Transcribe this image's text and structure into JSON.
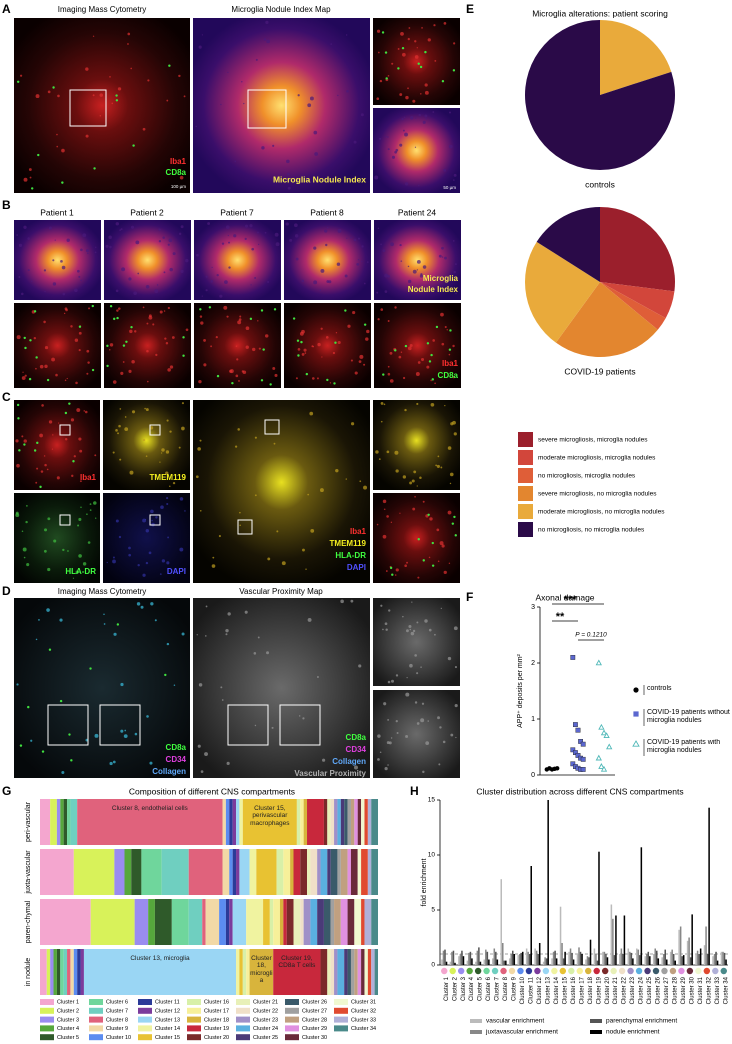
{
  "panels": {
    "A": {
      "label": "A",
      "titles": [
        "Imaging Mass Cytometry",
        "Microglia Nodule Index Map"
      ],
      "markers": [
        "Iba1",
        "CD8a"
      ],
      "overlay": "Microglia Nodule Index",
      "scale_bars": [
        "100 µm",
        "50 µm"
      ]
    },
    "B": {
      "label": "B",
      "columns": [
        "Patient 1",
        "Patient 2",
        "Patient 7",
        "Patient 8",
        "Patient 24"
      ],
      "overlay": [
        "Microglia",
        "Nodule Index"
      ],
      "markers": [
        "Iba1",
        "CD8a"
      ]
    },
    "C": {
      "label": "C",
      "channels": [
        "Iba1",
        "TMEM119",
        "HLA-DR",
        "DAPI"
      ],
      "merge": [
        "Iba1",
        "TMEM119",
        "HLA-DR",
        "DAPI"
      ]
    },
    "D": {
      "label": "D",
      "titles": [
        "Imaging Mass Cytometry",
        "Vascular Proximity Map"
      ],
      "markers": [
        "CD8a",
        "CD34",
        "Collagen"
      ],
      "overlay": [
        "CD8a",
        "CD34",
        "Collagen",
        "Vascular Proximity"
      ]
    }
  },
  "chart_data": [
    {
      "type": "pie",
      "panel_label": "E",
      "title": "Microglia alterations: patient scoring",
      "categories": [
        "severe microgliosis, microglia nodules",
        "moderate microgliosis, microglia nodules",
        "no microgliosis, microglia nodules",
        "severe microgliosis, no microglia nodules",
        "moderate microgliosis, no microglia nodules",
        "no microgliosis, no microglia nodules"
      ],
      "colors": [
        "#9b1f2c",
        "#d2463b",
        "#df5e38",
        "#e3862f",
        "#e9aa3b",
        "#2a0a48"
      ],
      "series": [
        {
          "name": "controls",
          "values": [
            0,
            0,
            0,
            0,
            20,
            80
          ]
        },
        {
          "name": "COVID-19 patients",
          "values": [
            27,
            6,
            3,
            24,
            24,
            16
          ]
        }
      ]
    },
    {
      "type": "strip",
      "panel_label": "F",
      "title": "Axonal damage",
      "ylabel": "APP⁺ deposits per mm²",
      "ylim": [
        0,
        3
      ],
      "yticks": [
        0,
        1,
        2,
        3
      ],
      "series": [
        {
          "name": "controls",
          "color": "#000000",
          "marker": "circle",
          "values": [
            0.1,
            0.12,
            0.1,
            0.11,
            0.12
          ]
        },
        {
          "name": "COVID-19 patients without microglia nodules",
          "color": "#5b67cf",
          "marker": "square",
          "values": [
            2.1,
            0.9,
            0.8,
            0.6,
            0.55,
            0.45,
            0.4,
            0.35,
            0.3,
            0.28,
            0.2,
            0.15,
            0.12,
            0.1,
            0.1
          ]
        },
        {
          "name": "COVID-19 patients with microglia nodules",
          "color": "#4fb8b8",
          "marker": "triangle",
          "values": [
            2.0,
            0.85,
            0.75,
            0.7,
            0.5,
            0.3,
            0.15,
            0.1
          ]
        }
      ],
      "annotations": [
        "***",
        "**",
        "P = 0.1210"
      ]
    },
    {
      "type": "stacked_bar",
      "panel_label": "G",
      "title": "Composition of different CNS compartments",
      "categories": [
        "peri-vascular",
        "juxta-vascular",
        "paren-chymal",
        "in nodule"
      ],
      "xlim": [
        0,
        100
      ],
      "series": [
        {
          "name": "Cluster 1",
          "color": "#f4a6cf",
          "values": [
            3,
            10,
            15,
            2
          ]
        },
        {
          "name": "Cluster 2",
          "color": "#d8f25a",
          "values": [
            2,
            12,
            13,
            1
          ]
        },
        {
          "name": "Cluster 3",
          "color": "#9a8cf0",
          "values": [
            1,
            3,
            4,
            1
          ]
        },
        {
          "name": "Cluster 4",
          "color": "#56a83c",
          "values": [
            1,
            2,
            2,
            1
          ]
        },
        {
          "name": "Cluster 5",
          "color": "#2f5a2a",
          "values": [
            1,
            3,
            5,
            1
          ]
        },
        {
          "name": "Cluster 6",
          "color": "#6fd69c",
          "values": [
            1,
            6,
            5,
            1
          ]
        },
        {
          "name": "Cluster 7",
          "color": "#6fcfc0",
          "values": [
            2,
            8,
            4,
            1
          ]
        },
        {
          "name": "Cluster 8",
          "color": "#e0627c",
          "values": [
            43,
            10,
            1,
            1
          ]
        },
        {
          "name": "Cluster 9",
          "color": "#f2d9a6",
          "values": [
            1,
            2,
            4,
            1
          ]
        },
        {
          "name": "Cluster 10",
          "color": "#5b8cf0",
          "values": [
            1,
            1,
            2,
            1
          ]
        },
        {
          "name": "Cluster 11",
          "color": "#2b3a98",
          "values": [
            1,
            1,
            1,
            1
          ]
        },
        {
          "name": "Cluster 12",
          "color": "#7b3b9c",
          "values": [
            1,
            1,
            1,
            1
          ]
        },
        {
          "name": "Cluster 13",
          "color": "#9ad6f4",
          "values": [
            1,
            3,
            4,
            45
          ]
        },
        {
          "name": "Cluster 14",
          "color": "#f0f3a0",
          "values": [
            1,
            2,
            5,
            1
          ]
        },
        {
          "name": "Cluster 15",
          "color": "#e8c232",
          "values": [
            16,
            6,
            2,
            1
          ]
        },
        {
          "name": "Cluster 16",
          "color": "#d8f0a8",
          "values": [
            1,
            2,
            1,
            1
          ]
        },
        {
          "name": "Cluster 17",
          "color": "#f7f09a",
          "values": [
            1,
            2,
            2,
            1
          ]
        },
        {
          "name": "Cluster 18",
          "color": "#d8b43c",
          "values": [
            1,
            1,
            1,
            7
          ]
        },
        {
          "name": "Cluster 19",
          "color": "#c8283c",
          "values": [
            5,
            2,
            1,
            14
          ]
        },
        {
          "name": "Cluster 20",
          "color": "#7a2a2a",
          "values": [
            1,
            2,
            2,
            2
          ]
        },
        {
          "name": "Cluster 21",
          "color": "#e8f0b8",
          "values": [
            1,
            1,
            2,
            1
          ]
        },
        {
          "name": "Cluster 22",
          "color": "#f0e0c8",
          "values": [
            1,
            2,
            1,
            1
          ]
        },
        {
          "name": "Cluster 23",
          "color": "#a090c8",
          "values": [
            1,
            1,
            2,
            1
          ]
        },
        {
          "name": "Cluster 24",
          "color": "#5ab0e0",
          "values": [
            1,
            2,
            2,
            2
          ]
        },
        {
          "name": "Cluster 25",
          "color": "#4a3a78",
          "values": [
            1,
            1,
            2,
            1
          ]
        },
        {
          "name": "Cluster 26",
          "color": "#3a5a6a",
          "values": [
            1,
            2,
            2,
            1
          ]
        },
        {
          "name": "Cluster 27",
          "color": "#a0a0a0",
          "values": [
            1,
            1,
            1,
            1
          ]
        },
        {
          "name": "Cluster 28",
          "color": "#c0a080",
          "values": [
            1,
            2,
            2,
            1
          ]
        },
        {
          "name": "Cluster 29",
          "color": "#e090e0",
          "values": [
            1,
            1,
            2,
            1
          ]
        },
        {
          "name": "Cluster 30",
          "color": "#6a2a3a",
          "values": [
            1,
            2,
            2,
            1
          ]
        },
        {
          "name": "Cluster 31",
          "color": "#f0f8d0",
          "values": [
            1,
            1,
            2,
            1
          ]
        },
        {
          "name": "Cluster 32",
          "color": "#e04a30",
          "values": [
            1,
            2,
            1,
            1
          ]
        },
        {
          "name": "Cluster 33",
          "color": "#b0b0d8",
          "values": [
            1,
            1,
            2,
            1
          ]
        },
        {
          "name": "Cluster 34",
          "color": "#4a8a8a",
          "values": [
            2,
            2,
            2,
            1
          ]
        }
      ],
      "annotations": [
        "Cluster 8, endothelial cells",
        "Cluster 15, perivascular macrophages",
        "Cluster 13, microglia",
        "Cluster 18, microglia",
        "Cluster 19, CD8a T cells"
      ]
    },
    {
      "type": "grouped_bar",
      "panel_label": "H",
      "title": "Cluster distribution across different CNS compartments",
      "ylabel": "fold enrichment",
      "categories": [
        "Cluster 1",
        "Cluster 2",
        "Cluster 3",
        "Cluster 4",
        "Cluster 5",
        "Cluster 6",
        "Cluster 7",
        "Cluster 8",
        "Cluster 9",
        "Cluster 10",
        "Cluster 11",
        "Cluster 12",
        "Cluster 13",
        "Cluster 14",
        "Cluster 15",
        "Cluster 16",
        "Cluster 17",
        "Cluster 18",
        "Cluster 19",
        "Cluster 20",
        "Cluster 21",
        "Cluster 22",
        "Cluster 23",
        "Cluster 24",
        "Cluster 25",
        "Cluster 26",
        "Cluster 27",
        "Cluster 28",
        "Cluster 29",
        "Cluster 30",
        "Cluster 31",
        "Cluster 32",
        "Cluster 33",
        "Cluster 34"
      ],
      "category_colors": [
        "#f4a6cf",
        "#d8f25a",
        "#9a8cf0",
        "#56a83c",
        "#2f5a2a",
        "#6fd69c",
        "#6fcfc0",
        "#e0627c",
        "#f2d9a6",
        "#5b8cf0",
        "#2b3a98",
        "#7b3b9c",
        "#9ad6f4",
        "#f0f3a0",
        "#e8c232",
        "#d8f0a8",
        "#f7f09a",
        "#d8b43c",
        "#c8283c",
        "#7a2a2a",
        "#e8f0b8",
        "#f0e0c8",
        "#a090c8",
        "#5ab0e0",
        "#4a3a78",
        "#3a5a6a",
        "#a0a0a0",
        "#c0a080",
        "#e090e0",
        "#6a2a3a",
        "#f0f8d0",
        "#e04a30",
        "#b0b0d8",
        "#4a8a8a"
      ],
      "ylim": [
        0,
        15
      ],
      "yticks": [
        0,
        5,
        10,
        15
      ],
      "reference_line": 1,
      "series": [
        {
          "name": "vascular enrichment",
          "color": "#bbbbbb",
          "values": [
            0.5,
            0.3,
            0.8,
            0.4,
            0.3,
            0.5,
            0.6,
            7.8,
            0.6,
            0.9,
            1.5,
            1.5,
            0.3,
            0.6,
            5.3,
            1.2,
            1.0,
            0.5,
            1.5,
            1.2,
            5.5,
            1.0,
            1.5,
            1.5,
            0.8,
            1.0,
            0.7,
            1.2,
            3.2,
            2.2,
            1.0,
            1.8,
            0.8,
            1.2
          ]
        },
        {
          "name": "juxtavascular enrichment",
          "color": "#888888",
          "values": [
            1.3,
            1.2,
            1.0,
            1.1,
            1.3,
            1.4,
            1.5,
            2.0,
            1.0,
            1.0,
            1.2,
            1.3,
            0.7,
            1.2,
            2.0,
            1.5,
            1.6,
            0.8,
            1.0,
            1.2,
            4.2,
            1.5,
            1.2,
            1.4,
            1.0,
            1.5,
            1.0,
            1.4,
            3.5,
            2.5,
            1.3,
            3.5,
            1.0,
            1.2
          ]
        },
        {
          "name": "parenchymal enrichment",
          "color": "#555555",
          "values": [
            1.4,
            1.3,
            1.3,
            1.2,
            1.6,
            1.2,
            1.2,
            0.4,
            1.3,
            1.1,
            1.0,
            1.0,
            0.6,
            1.3,
            0.6,
            1.1,
            1.2,
            0.7,
            0.4,
            1.0,
            0.9,
            1.0,
            1.1,
            0.9,
            1.2,
            1.3,
            1.4,
            1.0,
            0.8,
            0.7,
            1.0,
            1.0,
            1.2,
            1.1
          ]
        },
        {
          "name": "nodule enrichment",
          "color": "#000000",
          "values": [
            0.3,
            0.2,
            0.8,
            0.6,
            0.3,
            0.5,
            0.5,
            0.4,
            1.0,
            1.2,
            9.0,
            2.0,
            15.0,
            0.6,
            1.2,
            0.5,
            1.0,
            2.3,
            10.3,
            0.7,
            4.5,
            4.5,
            0.6,
            10.7,
            0.8,
            0.6,
            0.5,
            0.4,
            0.9,
            4.6,
            1.5,
            14.3,
            0.4,
            0.5
          ]
        }
      ]
    }
  ]
}
